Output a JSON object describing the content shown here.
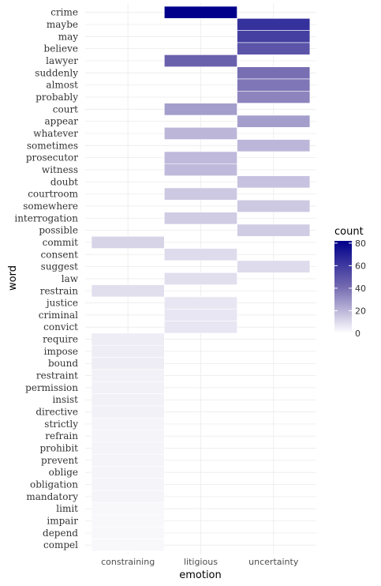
{
  "chart_data": {
    "type": "heatmap",
    "xlabel": "emotion",
    "ylabel": "word",
    "x_categories": [
      "constraining",
      "litigious",
      "uncertainty"
    ],
    "y_categories": [
      "crime",
      "maybe",
      "may",
      "believe",
      "lawyer",
      "suddenly",
      "almost",
      "probably",
      "court",
      "appear",
      "whatever",
      "sometimes",
      "prosecutor",
      "witness",
      "doubt",
      "courtroom",
      "somewhere",
      "interrogation",
      "possible",
      "commit",
      "consent",
      "suggest",
      "law",
      "restrain",
      "justice",
      "criminal",
      "convict",
      "require",
      "impose",
      "bound",
      "restraint",
      "permission",
      "insist",
      "directive",
      "strictly",
      "refrain",
      "prohibit",
      "prevent",
      "oblige",
      "obligation",
      "mandatory",
      "limit",
      "impair",
      "depend",
      "compel"
    ],
    "cells": [
      {
        "word": "crime",
        "emotion": "litigious",
        "value": 82
      },
      {
        "word": "maybe",
        "emotion": "uncertainty",
        "value": 63
      },
      {
        "word": "may",
        "emotion": "uncertainty",
        "value": 58
      },
      {
        "word": "believe",
        "emotion": "uncertainty",
        "value": 50
      },
      {
        "word": "lawyer",
        "emotion": "litigious",
        "value": 45
      },
      {
        "word": "suddenly",
        "emotion": "uncertainty",
        "value": 40
      },
      {
        "word": "almost",
        "emotion": "uncertainty",
        "value": 38
      },
      {
        "word": "probably",
        "emotion": "uncertainty",
        "value": 34
      },
      {
        "word": "court",
        "emotion": "litigious",
        "value": 27
      },
      {
        "word": "appear",
        "emotion": "uncertainty",
        "value": 27
      },
      {
        "word": "whatever",
        "emotion": "litigious",
        "value": 20
      },
      {
        "word": "sometimes",
        "emotion": "uncertainty",
        "value": 20
      },
      {
        "word": "prosecutor",
        "emotion": "litigious",
        "value": 19
      },
      {
        "word": "witness",
        "emotion": "litigious",
        "value": 19
      },
      {
        "word": "doubt",
        "emotion": "uncertainty",
        "value": 17
      },
      {
        "word": "courtroom",
        "emotion": "litigious",
        "value": 15
      },
      {
        "word": "somewhere",
        "emotion": "uncertainty",
        "value": 15
      },
      {
        "word": "interrogation",
        "emotion": "litigious",
        "value": 14
      },
      {
        "word": "possible",
        "emotion": "uncertainty",
        "value": 14
      },
      {
        "word": "commit",
        "emotion": "constraining",
        "value": 12
      },
      {
        "word": "consent",
        "emotion": "litigious",
        "value": 10
      },
      {
        "word": "suggest",
        "emotion": "uncertainty",
        "value": 10
      },
      {
        "word": "law",
        "emotion": "litigious",
        "value": 9
      },
      {
        "word": "restrain",
        "emotion": "constraining",
        "value": 9
      },
      {
        "word": "justice",
        "emotion": "litigious",
        "value": 7
      },
      {
        "word": "criminal",
        "emotion": "litigious",
        "value": 7
      },
      {
        "word": "convict",
        "emotion": "litigious",
        "value": 7
      },
      {
        "word": "require",
        "emotion": "constraining",
        "value": 5
      },
      {
        "word": "impose",
        "emotion": "constraining",
        "value": 5
      },
      {
        "word": "bound",
        "emotion": "constraining",
        "value": 5
      },
      {
        "word": "restraint",
        "emotion": "constraining",
        "value": 4
      },
      {
        "word": "permission",
        "emotion": "constraining",
        "value": 4
      },
      {
        "word": "insist",
        "emotion": "constraining",
        "value": 4
      },
      {
        "word": "directive",
        "emotion": "constraining",
        "value": 4
      },
      {
        "word": "strictly",
        "emotion": "constraining",
        "value": 3
      },
      {
        "word": "refrain",
        "emotion": "constraining",
        "value": 3
      },
      {
        "word": "prohibit",
        "emotion": "constraining",
        "value": 3
      },
      {
        "word": "prevent",
        "emotion": "constraining",
        "value": 3
      },
      {
        "word": "oblige",
        "emotion": "constraining",
        "value": 3
      },
      {
        "word": "obligation",
        "emotion": "constraining",
        "value": 3
      },
      {
        "word": "mandatory",
        "emotion": "constraining",
        "value": 3
      },
      {
        "word": "limit",
        "emotion": "constraining",
        "value": 2
      },
      {
        "word": "impair",
        "emotion": "constraining",
        "value": 2
      },
      {
        "word": "depend",
        "emotion": "constraining",
        "value": 2
      },
      {
        "word": "compel",
        "emotion": "constraining",
        "value": 2
      }
    ],
    "legend": {
      "title": "count",
      "ticks": [
        0,
        20,
        40,
        60,
        80
      ],
      "range": [
        0,
        82
      ],
      "low_color": "#ffffff",
      "high_color": "#00008b"
    },
    "grid": true,
    "legend_position": "right"
  }
}
